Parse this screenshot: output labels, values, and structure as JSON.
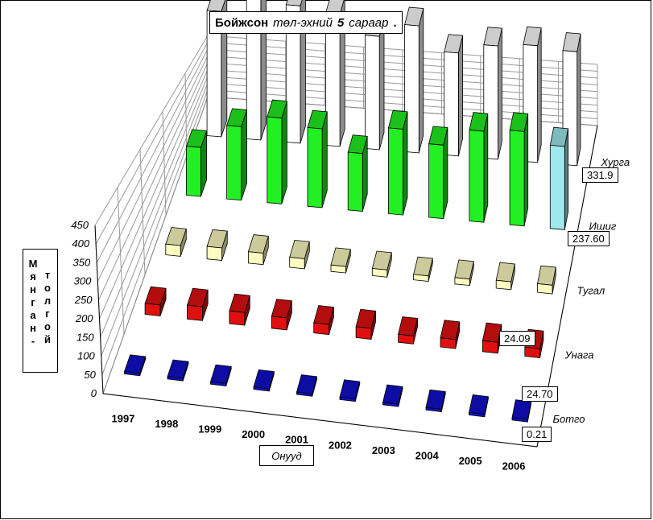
{
  "title": {
    "part1": "Бойжсон",
    "part2": "төл-эхний",
    "part3": "5",
    "part4": "сараар",
    "part5": "."
  },
  "chart_data": {
    "type": "bar",
    "subtype": "3d-column",
    "xlabel": "Онууд",
    "ylabel": "Мянган толгой",
    "ylim": [
      0,
      450
    ],
    "yticks": [
      0,
      50,
      100,
      150,
      200,
      250,
      300,
      350,
      400,
      450
    ],
    "categories": [
      "1997",
      "1998",
      "1999",
      "2000",
      "2001",
      "2002",
      "2003",
      "2004",
      "2005",
      "2006"
    ],
    "series": [
      {
        "name": "Ботго",
        "color": "#1010cc",
        "values": [
          0.3,
          0.3,
          0.3,
          0.3,
          0.3,
          0.3,
          0.3,
          0.3,
          0.3,
          0.21
        ]
      },
      {
        "name": "Унага",
        "color": "#e01010",
        "values": [
          30,
          38,
          35,
          33,
          28,
          30,
          22,
          25,
          30,
          24.7
        ]
      },
      {
        "name": "Тугал",
        "color": "#fffcc0",
        "values": [
          30,
          35,
          32,
          28,
          18,
          20,
          15,
          18,
          22,
          24.09
        ]
      },
      {
        "name": "Ишиг",
        "color": "#22f022",
        "values": [
          140,
          210,
          245,
          225,
          165,
          245,
          210,
          260,
          270,
          237.6
        ]
      },
      {
        "name": "Хурга",
        "color": "#ffffff",
        "values": [
          365,
          440,
          400,
          385,
          330,
          370,
          300,
          330,
          340,
          331.9
        ]
      }
    ],
    "data_labels": [
      "331.9",
      "237.60",
      "24.09",
      "24.70",
      "0.21"
    ],
    "grid": true,
    "legend": "none"
  }
}
